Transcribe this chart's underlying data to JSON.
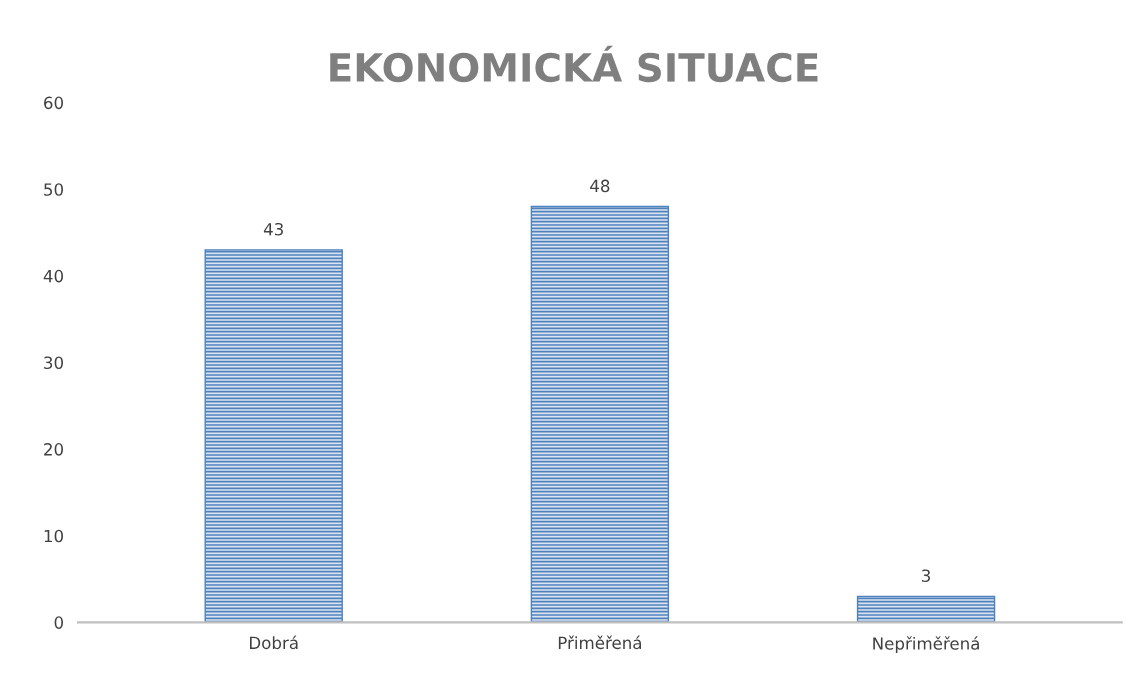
{
  "chart_data": {
    "type": "bar",
    "title": "EKONOMICKÁ SITUACE",
    "categories": [
      "Dobrá",
      "Přiměřená",
      "Nepřiměřená"
    ],
    "values": [
      43,
      48,
      3
    ],
    "color": "#4f81bd",
    "ylim": [
      0,
      60
    ],
    "yticks": [
      0,
      10,
      20,
      30,
      40,
      50,
      60
    ],
    "data_labels": true,
    "grid": false
  }
}
